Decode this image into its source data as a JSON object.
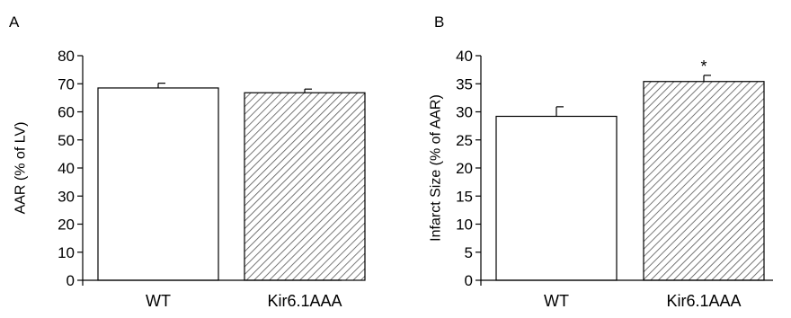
{
  "chart_data": [
    {
      "panel_label": "A",
      "type": "bar",
      "categories": [
        "WT",
        "Kir6.1AAA"
      ],
      "values": [
        68.5,
        66.8
      ],
      "errors": [
        1.7,
        1.3
      ],
      "patterns": [
        "none",
        "hatched"
      ],
      "significance": [
        "",
        ""
      ],
      "ylabel": "AAR (% of LV)",
      "ylim": [
        0,
        80
      ],
      "yticks": [
        0,
        10,
        20,
        30,
        40,
        50,
        60,
        70,
        80
      ]
    },
    {
      "panel_label": "B",
      "type": "bar",
      "categories": [
        "WT",
        "Kir6.1AAA"
      ],
      "values": [
        29.2,
        35.4
      ],
      "errors": [
        1.7,
        1.1
      ],
      "patterns": [
        "none",
        "hatched"
      ],
      "significance": [
        "",
        "*"
      ],
      "ylabel": "Infarct Size (% of AAR)",
      "ylim": [
        0,
        40
      ],
      "yticks": [
        0,
        5,
        10,
        15,
        20,
        25,
        30,
        35,
        40
      ]
    }
  ],
  "colors": {
    "bar_fill": "#ffffff",
    "hatch": "#555555",
    "axis": "#000000"
  }
}
